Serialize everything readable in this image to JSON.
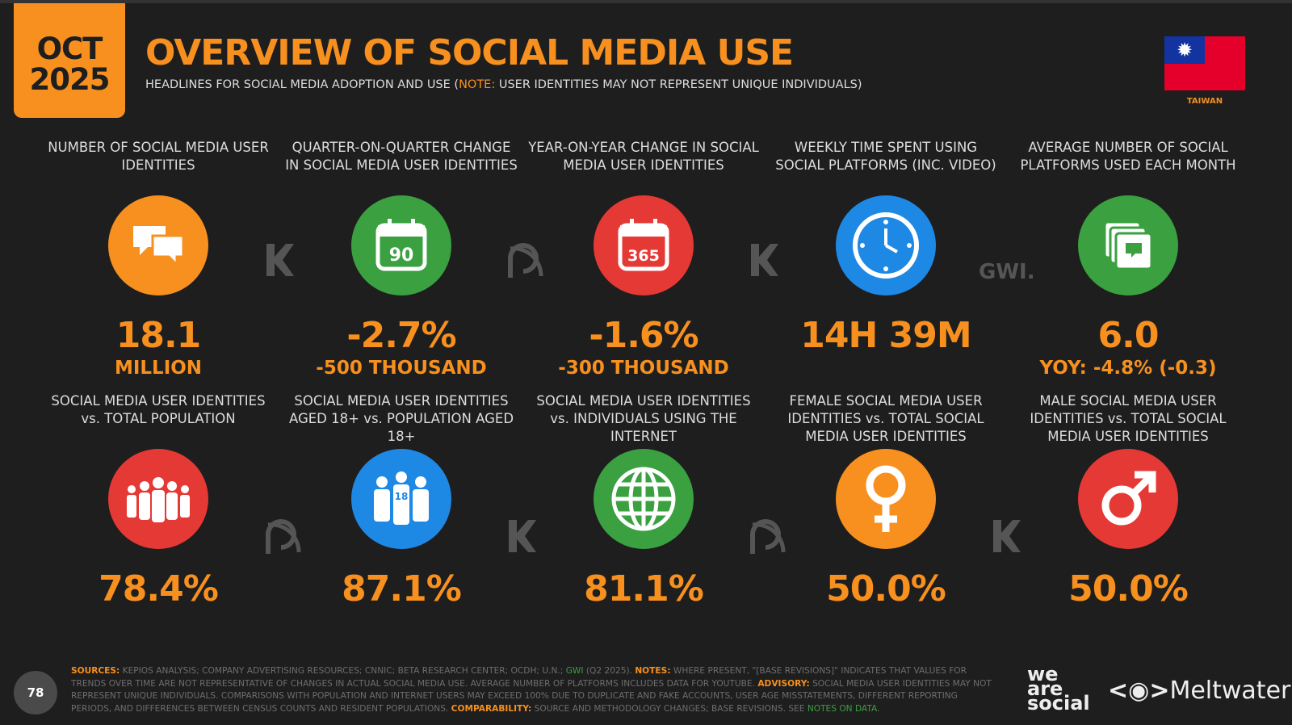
{
  "header": {
    "date_month": "OCT",
    "date_year": "2025",
    "title": "OVERVIEW OF SOCIAL MEDIA USE",
    "subtitle_pre": "HEADLINES FOR SOCIAL MEDIA ADOPTION AND USE (",
    "subtitle_note": "NOTE:",
    "subtitle_post": " USER IDENTITIES MAY NOT REPRESENT UNIQUE INDIVIDUALS)",
    "country": "TAIWAN"
  },
  "colors": {
    "accent": "#f7901e",
    "orange": "#f7901e",
    "green": "#3aa040",
    "red": "#e53935",
    "blue": "#1e88e5"
  },
  "cards": [
    {
      "label": "NUMBER OF SOCIAL MEDIA USER IDENTITIES",
      "icon": "speech-bubbles-icon",
      "color": "#f7901e",
      "value": "18.1",
      "sub": "MILLION"
    },
    {
      "label": "QUARTER-ON-QUARTER CHANGE IN SOCIAL MEDIA USER IDENTITIES",
      "icon": "calendar-90-icon",
      "icon_text": "90",
      "color": "#3aa040",
      "value": "-2.7%",
      "sub": "-500 THOUSAND"
    },
    {
      "label": "YEAR-ON-YEAR CHANGE IN SOCIAL MEDIA USER IDENTITIES",
      "icon": "calendar-365-icon",
      "icon_text": "365",
      "color": "#e53935",
      "value": "-1.6%",
      "sub": "-300 THOUSAND"
    },
    {
      "label": "WEEKLY TIME SPENT USING SOCIAL PLATFORMS (INC. VIDEO)",
      "icon": "clock-icon",
      "color": "#1e88e5",
      "value": "14H 39M",
      "sub": ""
    },
    {
      "label": "AVERAGE NUMBER OF SOCIAL PLATFORMS USED EACH MONTH",
      "icon": "stacked-cards-icon",
      "color": "#3aa040",
      "value": "6.0",
      "sub": "YOY: -4.8% (-0.3)"
    },
    {
      "label": "SOCIAL MEDIA USER IDENTITIES vs. TOTAL POPULATION",
      "icon": "people-group-icon",
      "color": "#e53935",
      "value": "78.4%",
      "sub": ""
    },
    {
      "label": "SOCIAL MEDIA USER IDENTITIES AGED 18+ vs. POPULATION AGED 18+",
      "icon": "adults-18-icon",
      "icon_text": "18",
      "color": "#1e88e5",
      "value": "87.1%",
      "sub": ""
    },
    {
      "label": "SOCIAL MEDIA USER IDENTITIES vs. INDIVIDUALS USING THE INTERNET",
      "icon": "globe-icon",
      "color": "#3aa040",
      "value": "81.1%",
      "sub": ""
    },
    {
      "label": "FEMALE SOCIAL MEDIA USER IDENTITIES vs. TOTAL SOCIAL MEDIA USER IDENTITIES",
      "icon": "female-symbol-icon",
      "color": "#f7901e",
      "value": "50.0%",
      "sub": ""
    },
    {
      "label": "MALE SOCIAL MEDIA USER IDENTITIES vs. TOTAL SOCIAL MEDIA USER IDENTITIES",
      "icon": "male-symbol-icon",
      "color": "#e53935",
      "value": "50.0%",
      "sub": ""
    }
  ],
  "watermarks": {
    "gwi": "GWI."
  },
  "footer": {
    "sources_label": "SOURCES:",
    "sources": " KEPIOS ANALYSIS; COMPANY ADVERTISING RESOURCES; CNNIC; BETA RESEARCH CENTER; OCDH; U.N.; ",
    "gwi": "GWI",
    "gwi_date": " (Q2 2025). ",
    "notes_label": "NOTES:",
    "notes": " WHERE PRESENT, \"[BASE REVISIONS]\" INDICATES THAT VALUES FOR TRENDS OVER TIME ARE NOT REPRESENTATIVE OF CHANGES IN ACTUAL SOCIAL MEDIA USE. AVERAGE NUMBER OF PLATFORMS INCLUDES DATA FOR YOUTUBE. ",
    "advisory_label": "ADVISORY:",
    "advisory": " SOCIAL MEDIA USER IDENTITIES MAY NOT REPRESENT UNIQUE INDIVIDUALS. COMPARISONS WITH POPULATION AND INTERNET USERS MAY EXCEED 100% DUE TO DUPLICATE AND FAKE ACCOUNTS, USER AGE MISSTATEMENTS, DIFFERENT REPORTING PERIODS, AND DIFFERENCES BETWEEN CENSUS COUNTS AND RESIDENT POPULATIONS. ",
    "comparability_label": "COMPARABILITY:",
    "comparability": " SOURCE AND METHODOLOGY CHANGES; BASE REVISIONS. SEE ",
    "notes_link": "NOTES ON DATA",
    "end": ".",
    "page_number": "78"
  },
  "logos": {
    "we_are_social": "we are social",
    "meltwater": "Meltwater"
  }
}
